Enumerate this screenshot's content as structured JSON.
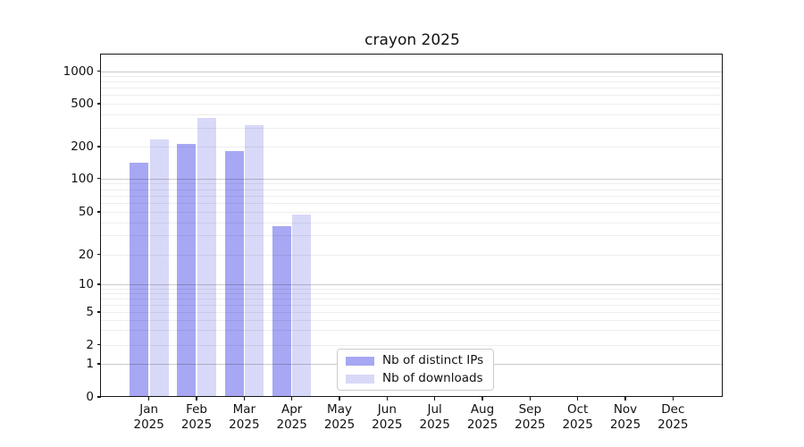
{
  "title": "crayon 2025",
  "colors": {
    "distinct_ips_bar": "#a7a7f4",
    "downloads_bar": "#d8d8f8",
    "axis": "#17171a",
    "background": "#ffffff"
  },
  "legend": {
    "items": [
      {
        "label": "Nb of distinct IPs",
        "color": "#a7a7f4"
      },
      {
        "label": "Nb of downloads",
        "color": "#d8d8f8"
      }
    ]
  },
  "y_axis": {
    "tick_labels": [
      "0",
      "1",
      "2",
      "5",
      "10",
      "20",
      "50",
      "100",
      "200",
      "500",
      "1000"
    ]
  },
  "x_axis": {
    "months": [
      "Jan",
      "Feb",
      "Mar",
      "Apr",
      "May",
      "Jun",
      "Jul",
      "Aug",
      "Sep",
      "Oct",
      "Nov",
      "Dec"
    ],
    "year": "2025"
  },
  "chart_data": {
    "type": "bar",
    "title": "crayon 2025",
    "categories": [
      "Jan 2025",
      "Feb 2025",
      "Mar 2025",
      "Apr 2025",
      "May 2025",
      "Jun 2025",
      "Jul 2025",
      "Aug 2025",
      "Sep 2025",
      "Oct 2025",
      "Nov 2025",
      "Dec 2025"
    ],
    "series": [
      {
        "name": "Nb of distinct IPs",
        "color": "#a7a7f4",
        "values": [
          142,
          213,
          183,
          37,
          null,
          null,
          null,
          null,
          null,
          null,
          null,
          null
        ]
      },
      {
        "name": "Nb of downloads",
        "color": "#d8d8f8",
        "values": [
          233,
          370,
          316,
          47,
          null,
          null,
          null,
          null,
          null,
          null,
          null,
          null
        ]
      }
    ],
    "yscale": "symlog",
    "yticks": [
      0,
      1,
      2,
      5,
      10,
      20,
      50,
      100,
      200,
      500,
      1000
    ],
    "ylim": [
      0,
      1400
    ],
    "grid": true,
    "legend_position": "lower-center"
  }
}
